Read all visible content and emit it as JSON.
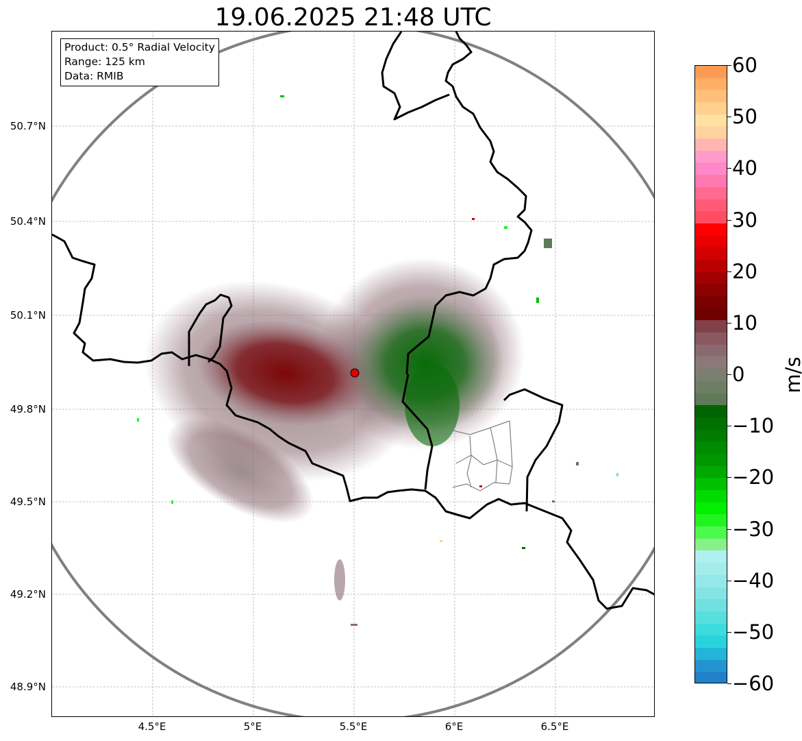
{
  "title": "19.06.2025 21:48 UTC",
  "info_box": {
    "product": "Product: 0.5° Radial Velocity",
    "range": "Range: 125 km",
    "data_source": "Data: RMIB"
  },
  "map": {
    "lat_labels": [
      "50.7°N",
      "50.4°N",
      "50.1°N",
      "49.8°N",
      "49.5°N",
      "49.2°N",
      "48.9°N"
    ],
    "lon_labels": [
      "4.5°E",
      "5°E",
      "5.5°E",
      "6°E",
      "6.5°E"
    ],
    "radar_site_color": "#e00000",
    "range_ring_color": "#808080",
    "border_color": "#000000",
    "grid": true
  },
  "colorbar": {
    "label": "m/s",
    "ticks": [
      "60",
      "50",
      "40",
      "30",
      "20",
      "10",
      "0",
      "−10",
      "−20",
      "−30",
      "−40",
      "−50",
      "−60"
    ],
    "min": -60,
    "max": 60,
    "colors_top_to_bottom": [
      "#ff9a55",
      "#ffae66",
      "#ffbf7a",
      "#ffd08e",
      "#ffe2a2",
      "#ffd3a0",
      "#ffb6b0",
      "#ff9bc8",
      "#ff88c8",
      "#ff78b0",
      "#ff6a90",
      "#ff5a78",
      "#ff4c60",
      "#ff0000",
      "#ea0000",
      "#d20000",
      "#bb0000",
      "#a20000",
      "#8d0000",
      "#7a0000",
      "#6f0000",
      "#824048",
      "#8a5860",
      "#8a6a72",
      "#8c7878",
      "#7a8070",
      "#6e7e64",
      "#5e7a58",
      "#006400",
      "#007000",
      "#007d00",
      "#008a00",
      "#009700",
      "#00a800",
      "#00c000",
      "#00dc00",
      "#00f000",
      "#20f520",
      "#4ef94e",
      "#88f088",
      "#b0f0f0",
      "#a4ecec",
      "#94e8e8",
      "#84e4e4",
      "#70e0e0",
      "#58dede",
      "#3cdcdc",
      "#28d4dc",
      "#24b4d8",
      "#2494d0",
      "#2080c8"
    ]
  }
}
